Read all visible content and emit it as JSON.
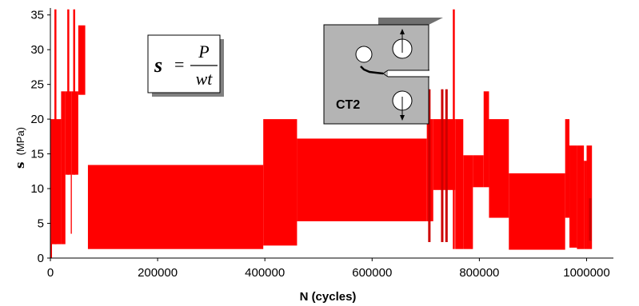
{
  "chart_data": {
    "type": "area",
    "title": "",
    "xlabel": "N (cycles)",
    "ylabel_symbol": "s",
    "ylabel_unit": "(MPa)",
    "xlim": [
      0,
      1050000
    ],
    "ylim": [
      0,
      36
    ],
    "x_ticks": [
      0,
      200000,
      400000,
      600000,
      800000,
      1000000
    ],
    "y_ticks": [
      0,
      5,
      10,
      15,
      20,
      25,
      30,
      35
    ],
    "x_tick_labels": [
      "0",
      "200000",
      "400000",
      "600000",
      "800000",
      "1000000"
    ],
    "y_tick_labels": [
      "0",
      "5",
      "10",
      "15",
      "20",
      "25",
      "30",
      "35"
    ],
    "grid": false,
    "series_color": "#ff0000",
    "dark_color": "#cc0000",
    "blocks": [
      {
        "x0": 0,
        "x1": 3000,
        "ymin": 0,
        "ymax": 20
      },
      {
        "x0": 3000,
        "x1": 20000,
        "ymin": 2,
        "ymax": 20
      },
      {
        "x0": 20000,
        "x1": 28000,
        "ymin": 2,
        "ymax": 24
      },
      {
        "x0": 28000,
        "x1": 38000,
        "ymin": 12,
        "ymax": 24
      },
      {
        "x0": 38000,
        "x1": 40000,
        "ymin": 3.5,
        "ymax": 24
      },
      {
        "x0": 40000,
        "x1": 52000,
        "ymin": 12,
        "ymax": 24
      },
      {
        "x0": 52000,
        "x1": 65000,
        "ymin": 23.5,
        "ymax": 33.5
      },
      {
        "x0": 70000,
        "x1": 397000,
        "ymin": 1.3,
        "ymax": 13.4
      },
      {
        "x0": 397000,
        "x1": 460000,
        "ymin": 1.8,
        "ymax": 20
      },
      {
        "x0": 460000,
        "x1": 702000,
        "ymin": 5.3,
        "ymax": 17.2
      },
      {
        "x0": 702000,
        "x1": 714000,
        "ymin": 5.3,
        "ymax": 20
      },
      {
        "x0": 714000,
        "x1": 755000,
        "ymin": 9.8,
        "ymax": 20
      },
      {
        "x0": 755000,
        "x1": 770000,
        "ymin": 1.3,
        "ymax": 20
      },
      {
        "x0": 770000,
        "x1": 788000,
        "ymin": 1.3,
        "ymax": 14.8
      },
      {
        "x0": 788000,
        "x1": 808000,
        "ymin": 10.2,
        "ymax": 14.8
      },
      {
        "x0": 808000,
        "x1": 818000,
        "ymin": 10.2,
        "ymax": 24
      },
      {
        "x0": 818000,
        "x1": 855000,
        "ymin": 5.8,
        "ymax": 20
      },
      {
        "x0": 855000,
        "x1": 960000,
        "ymin": 1.2,
        "ymax": 12.2
      },
      {
        "x0": 960000,
        "x1": 968000,
        "ymin": 5.8,
        "ymax": 20
      },
      {
        "x0": 968000,
        "x1": 982000,
        "ymin": 1.5,
        "ymax": 16.2
      },
      {
        "x0": 982000,
        "x1": 995000,
        "ymin": 1.3,
        "ymax": 16.2
      },
      {
        "x0": 995000,
        "x1": 1000000,
        "ymin": 1.3,
        "ymax": 14
      },
      {
        "x0": 1000000,
        "x1": 1010000,
        "ymin": 1.3,
        "ymax": 16.2
      }
    ],
    "spikes": [
      {
        "x": 9000,
        "ymin": 2,
        "ymax": 35.8
      },
      {
        "x": 33000,
        "ymin": 12,
        "ymax": 35.8
      },
      {
        "x": 44000,
        "ymin": 12,
        "ymax": 35.8
      },
      {
        "x": 752000,
        "ymin": 1.3,
        "ymax": 35.8
      }
    ],
    "dark_marks": [
      {
        "x": 706000,
        "ymin": 2.3,
        "ymax": 24.3
      },
      {
        "x": 730000,
        "ymin": 2.3,
        "ymax": 24.3
      },
      {
        "x": 738000,
        "ymin": 2.3,
        "ymax": 24.3
      },
      {
        "x": 1006000,
        "ymin": 2.5,
        "ymax": 8.6
      }
    ],
    "gaps": [
      {
        "x0": 65000,
        "x1": 70000
      }
    ]
  },
  "formula": {
    "lhs": "s",
    "equals": "=",
    "numerator": "P",
    "denominator": "wt"
  },
  "specimen": {
    "label": "CT2"
  }
}
